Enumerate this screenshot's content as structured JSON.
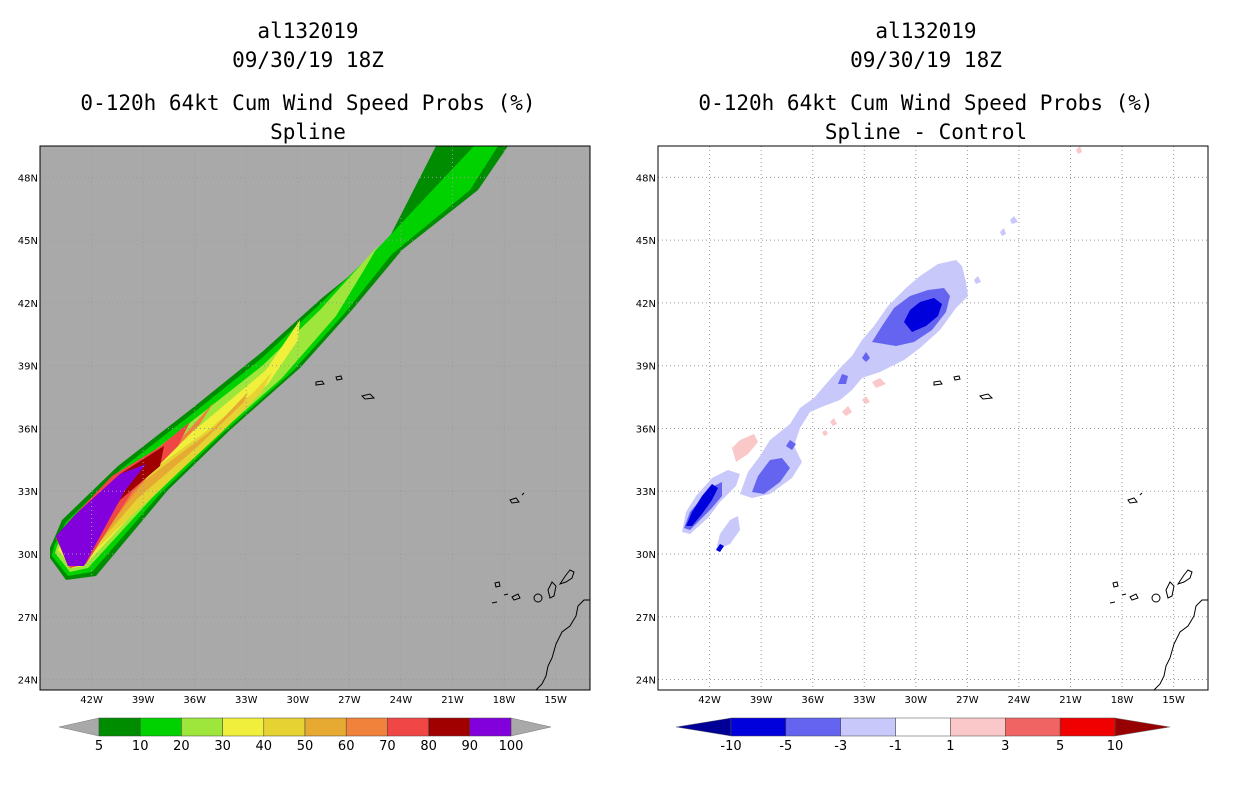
{
  "chart_data": [
    {
      "type": "filled-contour map",
      "title_lines": [
        "al132019",
        "09/30/19 18Z",
        "0-120h 64kt Cum Wind Speed Probs (%)",
        "Spline"
      ],
      "lon_range": [
        -45,
        -13
      ],
      "lat_range": [
        23.5,
        49.5
      ],
      "x_tick_labels": [
        "42W",
        "39W",
        "36W",
        "33W",
        "30W",
        "27W",
        "24W",
        "21W",
        "18W",
        "15W"
      ],
      "y_tick_labels": [
        "24N",
        "27N",
        "30N",
        "33N",
        "36N",
        "39N",
        "42N",
        "45N",
        "48N"
      ],
      "background_color": "#a9a9a9",
      "colorbar": {
        "labels": [
          "5",
          "10",
          "20",
          "30",
          "40",
          "50",
          "60",
          "70",
          "80",
          "90",
          "100"
        ],
        "colors": [
          "#008c00",
          "#00d200",
          "#9ee63c",
          "#f0f03c",
          "#e6d232",
          "#e6aa32",
          "#f0823c",
          "#f04646",
          "#a00000",
          "#8200dc"
        ],
        "end_colors": [
          "#a9a9a9",
          "#a9a9a9"
        ]
      },
      "swath_band_colors": [
        "#008c00",
        "#00d200",
        "#9ee63c",
        "#f0f03c",
        "#e6d232",
        "#e6aa32",
        "#f0823c",
        "#f04646",
        "#a00000",
        "#8200dc"
      ]
    },
    {
      "type": "filled-contour map",
      "title_lines": [
        "al132019",
        "09/30/19 18Z",
        "0-120h 64kt Cum Wind Speed Probs (%)",
        "Spline - Control"
      ],
      "lon_range": [
        -45,
        -13
      ],
      "lat_range": [
        23.5,
        49.5
      ],
      "x_tick_labels": [
        "42W",
        "39W",
        "36W",
        "33W",
        "30W",
        "27W",
        "24W",
        "21W",
        "18W",
        "15W"
      ],
      "y_tick_labels": [
        "24N",
        "27N",
        "30N",
        "33N",
        "36N",
        "39N",
        "42N",
        "45N",
        "48N"
      ],
      "background_color": "#ffffff",
      "colorbar": {
        "labels": [
          "-10",
          "-5",
          "-3",
          "-1",
          "1",
          "3",
          "5",
          "10"
        ],
        "colors": [
          "#0000dc",
          "#6464f0",
          "#c8c8fa",
          "#ffffff",
          "#fac8c8",
          "#f06464",
          "#f00000"
        ],
        "end_colors": [
          "#000096",
          "#960000"
        ]
      }
    }
  ]
}
